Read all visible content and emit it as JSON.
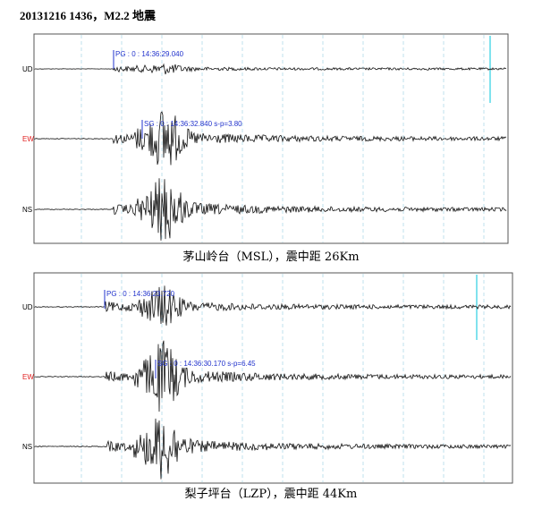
{
  "title": "20131216 1436，M2.2 地震",
  "panels": [
    {
      "channels": [
        "UD",
        "EW",
        "NS"
      ],
      "picks": [
        "PG : 0 : 14:36:29.040",
        "SG : 0 : 14:36:32.840 s-p=3.80"
      ],
      "caption": "茅山岭台（MSL），震中距 26Km"
    },
    {
      "channels": [
        "UD",
        "EW",
        "NS"
      ],
      "picks": [
        "PG : 0 : 14:36:23.720",
        "SG : 0 : 14:36:30.170 s-p=6.45"
      ],
      "caption": "梨子坪台（LZP），震中距 44Km"
    }
  ]
}
